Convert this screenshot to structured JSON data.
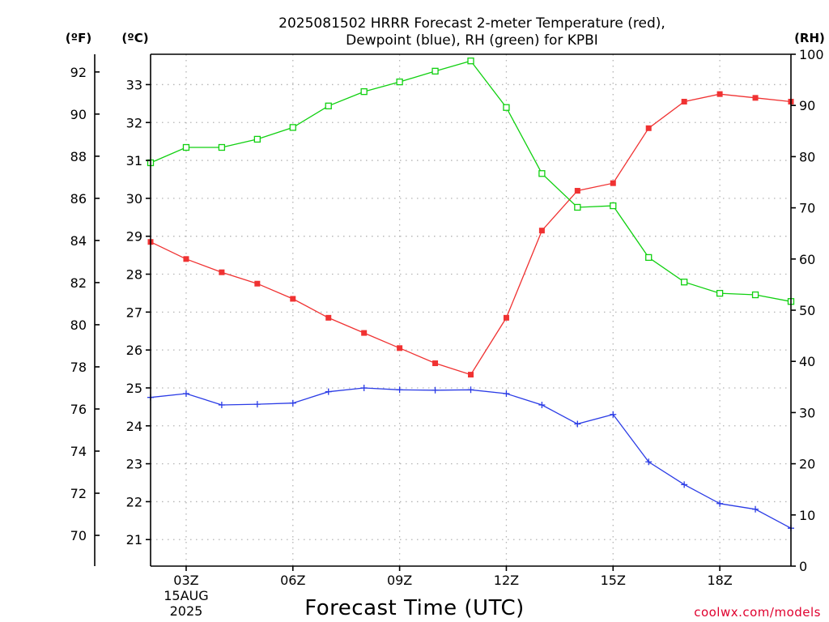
{
  "chart_data": {
    "type": "line",
    "title": "2025081502 HRRR Forecast 2-meter Temperature (red),",
    "subtitle": "Dewpoint (blue), RH (green) for KPBI",
    "xlabel": "Forecast Time (UTC)",
    "credit": "coolwx.com/models",
    "units": {
      "fahrenheit": "(ºF)",
      "celsius": "(ºC)",
      "rh": "(RH)"
    },
    "x_hours": [
      2,
      3,
      4,
      5,
      6,
      7,
      8,
      9,
      10,
      11,
      12,
      13,
      14,
      15,
      16,
      17,
      18,
      19,
      20
    ],
    "x_range": [
      2,
      20
    ],
    "x_ticks": [
      {
        "hour": 3,
        "label": "03Z",
        "sub1": "15AUG",
        "sub2": "2025"
      },
      {
        "hour": 6,
        "label": "06Z"
      },
      {
        "hour": 9,
        "label": "09Z"
      },
      {
        "hour": 12,
        "label": "12Z"
      },
      {
        "hour": 15,
        "label": "15Z"
      },
      {
        "hour": 18,
        "label": "18Z"
      }
    ],
    "y_celsius_range": [
      20.3,
      33.8
    ],
    "y_celsius_ticks": [
      "21",
      "22",
      "23",
      "24",
      "25",
      "26",
      "27",
      "28",
      "29",
      "30",
      "31",
      "32",
      "33"
    ],
    "y_fahrenheit_ticks": [
      "70",
      "72",
      "74",
      "76",
      "78",
      "80",
      "82",
      "84",
      "86",
      "88",
      "90",
      "92"
    ],
    "y_rh_range": [
      0,
      100
    ],
    "y_rh_ticks": [
      "0",
      "10",
      "20",
      "30",
      "40",
      "50",
      "60",
      "70",
      "80",
      "90",
      "100"
    ],
    "grid": true,
    "series": [
      {
        "name": "Temperature",
        "color": "#f03232",
        "marker": "square-filled",
        "axis": "celsius",
        "values": [
          28.85,
          28.4,
          28.05,
          27.75,
          27.35,
          26.85,
          26.45,
          26.05,
          25.65,
          25.35,
          26.85,
          29.15,
          30.2,
          30.4,
          31.85,
          32.55,
          32.75,
          32.65,
          32.55
        ]
      },
      {
        "name": "Dewpoint",
        "color": "#2b3ce6",
        "marker": "plus",
        "axis": "celsius",
        "values": [
          24.75,
          24.85,
          24.55,
          24.57,
          24.6,
          24.9,
          25.0,
          24.95,
          24.94,
          24.95,
          24.85,
          24.55,
          24.05,
          24.3,
          23.05,
          22.45,
          21.95,
          21.8,
          21.3
        ]
      },
      {
        "name": "RH",
        "color": "#10d010",
        "marker": "square-open",
        "axis": "rh",
        "values": [
          78.8,
          81.8,
          81.8,
          83.4,
          85.7,
          89.9,
          92.7,
          94.6,
          96.7,
          98.7,
          89.6,
          76.7,
          70.1,
          70.4,
          60.3,
          55.5,
          53.3,
          53.0,
          51.7
        ]
      }
    ]
  }
}
